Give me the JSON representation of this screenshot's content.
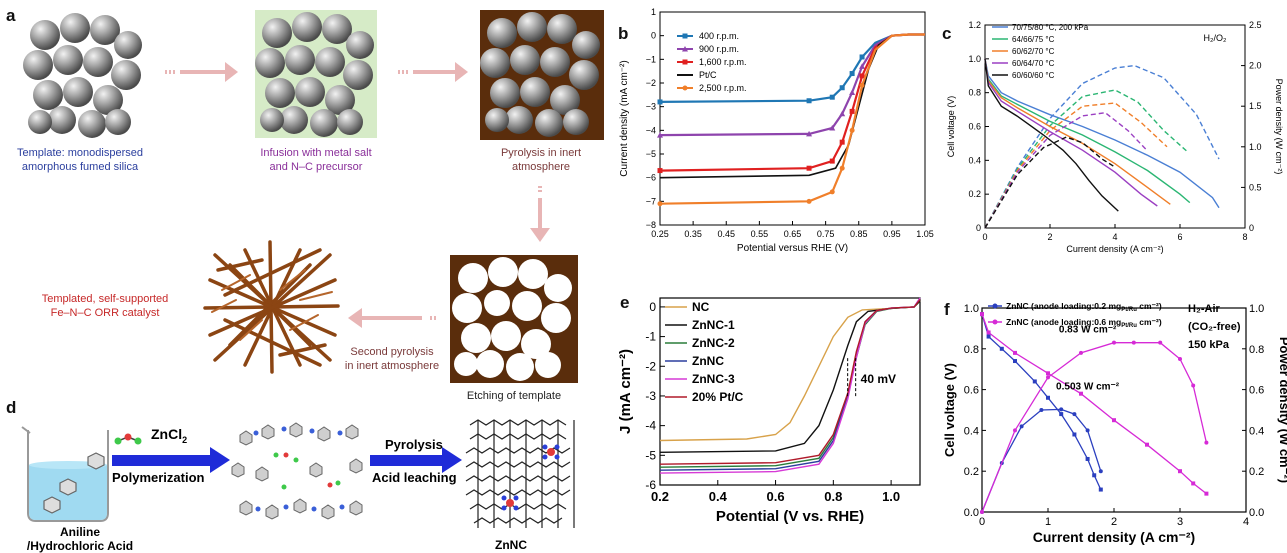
{
  "panel_letters": {
    "a": "a",
    "b": "b",
    "c": "c",
    "d": "d",
    "e": "e",
    "f": "f"
  },
  "panel_a": {
    "cap1_l1": "Template: monodispersed",
    "cap1_l2": "amorphous fumed silica",
    "cap2_l1": "Infusion with metal salt",
    "cap2_l2": "and N–C precursor",
    "cap3_l1": "Pyrolysis in inert",
    "cap3_l2": "atmosphere",
    "cap4": "Etching of template",
    "cap5_l1": "Second pyrolysis",
    "cap5_l2": "in inert atmosphere",
    "cap6_l1": "Templated, self-supported",
    "cap6_l2": "Fe–N–C ORR catalyst",
    "colors": {
      "blue": "#2b3f9e",
      "purple": "#8a2f9a",
      "maroon": "#7a3a3a",
      "red": "#c62828",
      "arrow": "#e8b5b5",
      "brown": "#5a2d0c"
    }
  },
  "panel_d": {
    "reagent": "ZnCl",
    "reagent_sub": "2",
    "step1": "Polymerization",
    "step2": "Pyrolysis",
    "step3": "Acid leaching",
    "start_l1": "Aniline",
    "start_l2": "/Hydrochloric Acid",
    "product": "ZnNC"
  },
  "chart_data": [
    {
      "panel": "b",
      "type": "line",
      "xlabel": "Potential versus RHE (V)",
      "ylabel": "Current density (mA cm⁻²)",
      "xlim": [
        0.25,
        1.05
      ],
      "ylim": [
        -8,
        1
      ],
      "xticks": [
        "0.25",
        "0.35",
        "0.45",
        "0.55",
        "0.65",
        "0.75",
        "0.85",
        "0.95",
        "1.05"
      ],
      "yticks": [
        "1",
        "0",
        "−1",
        "−2",
        "−3",
        "−4",
        "−5",
        "−6",
        "−7",
        "−8"
      ],
      "legend_position": "top-left",
      "series": [
        {
          "name": "400 r.p.m.",
          "color": "#1f77b4",
          "marker": "square",
          "x": [
            0.25,
            0.7,
            0.77,
            0.8,
            0.83,
            0.86,
            0.9,
            0.95,
            1.0,
            1.05
          ],
          "values": [
            -2.8,
            -2.75,
            -2.6,
            -2.2,
            -1.6,
            -0.9,
            -0.3,
            0.0,
            0.05,
            0.05
          ]
        },
        {
          "name": "900 r.p.m.",
          "color": "#8e44ad",
          "marker": "triangle",
          "x": [
            0.25,
            0.7,
            0.77,
            0.8,
            0.83,
            0.86,
            0.9,
            0.95,
            1.0,
            1.05
          ],
          "values": [
            -4.2,
            -4.15,
            -3.9,
            -3.3,
            -2.4,
            -1.3,
            -0.4,
            0.0,
            0.05,
            0.05
          ]
        },
        {
          "name": "1,600 r.p.m.",
          "color": "#e02020",
          "marker": "square",
          "x": [
            0.25,
            0.7,
            0.77,
            0.8,
            0.83,
            0.86,
            0.9,
            0.95,
            1.0,
            1.05
          ],
          "values": [
            -5.7,
            -5.6,
            -5.3,
            -4.5,
            -3.2,
            -1.7,
            -0.5,
            0.0,
            0.05,
            0.05
          ]
        },
        {
          "name": "Pt/C",
          "color": "#111111",
          "marker": "line",
          "x": [
            0.25,
            0.7,
            0.78,
            0.82,
            0.85,
            0.88,
            0.91,
            0.95,
            1.0,
            1.05
          ],
          "values": [
            -6.0,
            -5.9,
            -5.6,
            -4.6,
            -3.0,
            -1.4,
            -0.4,
            0.0,
            0.05,
            0.05
          ]
        },
        {
          "name": "2,500 r.p.m.",
          "color": "#f07f2a",
          "marker": "circle",
          "x": [
            0.25,
            0.7,
            0.77,
            0.8,
            0.83,
            0.86,
            0.9,
            0.95,
            1.0,
            1.05
          ],
          "values": [
            -7.1,
            -7.0,
            -6.6,
            -5.6,
            -4.0,
            -2.1,
            -0.6,
            0.0,
            0.05,
            0.05
          ]
        }
      ]
    },
    {
      "panel": "c",
      "type": "line",
      "annotation": "H₂/O₂",
      "ylabel": "Cell voltage (V)",
      "y2label": "Power density (W cm⁻²)",
      "xlabel": "Current density (A cm⁻²)",
      "xlim": [
        0,
        8
      ],
      "ylim": [
        0,
        1.2
      ],
      "y2lim": [
        0,
        2.5
      ],
      "xticks": [
        "0",
        "2",
        "4",
        "6",
        "8"
      ],
      "yticks": [
        "0",
        "0.2",
        "0.4",
        "0.6",
        "0.8",
        "1.0",
        "1.2"
      ],
      "y2ticks": [
        "0",
        "0.5",
        "1.0",
        "1.5",
        "2.0",
        "2.5"
      ],
      "legend_position": "top-left",
      "series": [
        {
          "name": "70/75/80 °C, 200 kPa",
          "color": "#4a7fd4",
          "x": [
            0,
            0.1,
            0.5,
            1,
            2,
            3,
            4,
            5,
            6,
            7,
            7.2
          ],
          "voltage": [
            1.0,
            0.9,
            0.8,
            0.75,
            0.67,
            0.6,
            0.52,
            0.43,
            0.33,
            0.18,
            0.12
          ],
          "power_x": [
            0,
            1,
            2,
            3,
            4,
            4.6,
            5.5,
            6.5,
            7.2
          ],
          "power": [
            0,
            0.75,
            1.35,
            1.78,
            1.97,
            2.0,
            1.85,
            1.4,
            0.85
          ]
        },
        {
          "name": "64/66/75 °C",
          "color": "#2bb673",
          "x": [
            0,
            0.1,
            0.5,
            1,
            2,
            3,
            4,
            5,
            6,
            6.3
          ],
          "voltage": [
            1.0,
            0.88,
            0.78,
            0.73,
            0.63,
            0.55,
            0.45,
            0.34,
            0.2,
            0.15
          ],
          "power_x": [
            0,
            1,
            2,
            3,
            4,
            4.7,
            5.5,
            6.2
          ],
          "power": [
            0,
            0.73,
            1.26,
            1.62,
            1.7,
            1.55,
            1.2,
            0.95
          ]
        },
        {
          "name": "60/62/70 °C",
          "color": "#f07f2a",
          "x": [
            0,
            0.1,
            0.5,
            1,
            2,
            3,
            4,
            5,
            5.7
          ],
          "voltage": [
            1.0,
            0.87,
            0.77,
            0.71,
            0.6,
            0.5,
            0.38,
            0.24,
            0.14
          ],
          "power_x": [
            0,
            1,
            2,
            3,
            4,
            4.8,
            5.6
          ],
          "power": [
            0,
            0.71,
            1.2,
            1.5,
            1.54,
            1.3,
            1.0
          ]
        },
        {
          "name": "60/64/70 °C",
          "color": "#9b3fc2",
          "x": [
            0,
            0.1,
            0.5,
            1,
            2,
            3,
            4,
            4.8,
            5.3
          ],
          "voltage": [
            1.0,
            0.86,
            0.75,
            0.69,
            0.57,
            0.46,
            0.33,
            0.2,
            0.13
          ],
          "power_x": [
            0,
            1,
            2,
            3,
            3.7,
            4.4,
            5.0
          ],
          "power": [
            0,
            0.69,
            1.14,
            1.38,
            1.42,
            1.2,
            0.95
          ]
        },
        {
          "name": "60/60/60 °C",
          "color": "#111111",
          "x": [
            0,
            0.1,
            0.5,
            1,
            1.8,
            2.4,
            2.8,
            3.2,
            3.6,
            4.1
          ],
          "voltage": [
            1.0,
            0.84,
            0.72,
            0.66,
            0.55,
            0.46,
            0.38,
            0.28,
            0.19,
            0.1
          ],
          "power_x": [
            0,
            1,
            1.8,
            2.5,
            3.0,
            3.6,
            4.0
          ],
          "power": [
            0,
            0.66,
            0.99,
            1.12,
            1.05,
            0.85,
            0.75
          ]
        }
      ]
    },
    {
      "panel": "e",
      "type": "line",
      "xlabel": "Potential (V vs. RHE)",
      "ylabel": "J (mA cm⁻²)",
      "xlim": [
        0.2,
        1.1
      ],
      "ylim": [
        -6,
        0.3
      ],
      "xticks": [
        "0.2",
        "0.4",
        "0.6",
        "0.8",
        "1.0"
      ],
      "yticks": [
        "0",
        "-1",
        "-2",
        "-3",
        "-4",
        "-5",
        "-6"
      ],
      "annotation": "40 mV",
      "legend_position": "top-left",
      "series": [
        {
          "name": "NC",
          "color": "#d8a24a",
          "x": [
            0.2,
            0.5,
            0.6,
            0.65,
            0.7,
            0.75,
            0.8,
            0.85,
            0.9,
            1.0,
            1.08,
            1.1
          ],
          "values": [
            -4.5,
            -4.45,
            -4.3,
            -3.9,
            -3.0,
            -2.0,
            -1.0,
            -0.35,
            -0.1,
            -0.05,
            0.0,
            0.2
          ]
        },
        {
          "name": "ZnNC-1",
          "color": "#111111",
          "x": [
            0.2,
            0.6,
            0.7,
            0.75,
            0.8,
            0.85,
            0.88,
            0.92,
            1.0,
            1.08,
            1.1
          ],
          "values": [
            -4.9,
            -4.85,
            -4.6,
            -4.0,
            -2.8,
            -1.3,
            -0.5,
            -0.15,
            -0.05,
            0.0,
            0.2
          ]
        },
        {
          "name": "ZnNC-2",
          "color": "#2a7d3a",
          "x": [
            0.2,
            0.6,
            0.75,
            0.8,
            0.85,
            0.88,
            0.91,
            0.95,
            1.0,
            1.08,
            1.1
          ],
          "values": [
            -5.4,
            -5.35,
            -5.1,
            -4.4,
            -3.0,
            -1.7,
            -0.6,
            -0.15,
            -0.05,
            0.0,
            0.25
          ]
        },
        {
          "name": "ZnNC",
          "color": "#2b3f9e",
          "x": [
            0.2,
            0.6,
            0.75,
            0.8,
            0.85,
            0.88,
            0.91,
            0.95,
            1.0,
            1.08,
            1.1
          ],
          "values": [
            -5.5,
            -5.45,
            -5.2,
            -4.5,
            -3.0,
            -1.6,
            -0.5,
            -0.12,
            -0.04,
            0.0,
            0.3
          ]
        },
        {
          "name": "ZnNC-3",
          "color": "#d63ad6",
          "x": [
            0.2,
            0.6,
            0.75,
            0.8,
            0.85,
            0.88,
            0.91,
            0.95,
            1.0,
            1.08,
            1.1
          ],
          "values": [
            -5.6,
            -5.55,
            -5.3,
            -4.6,
            -3.1,
            -1.7,
            -0.55,
            -0.13,
            -0.04,
            0.0,
            0.3
          ]
        },
        {
          "name": "20% Pt/C",
          "color": "#b01a2a",
          "x": [
            0.2,
            0.6,
            0.75,
            0.8,
            0.85,
            0.88,
            0.91,
            0.95,
            1.0,
            1.08,
            1.1
          ],
          "values": [
            -5.3,
            -5.25,
            -5.0,
            -4.3,
            -2.9,
            -1.5,
            -0.5,
            -0.12,
            -0.04,
            0.0,
            0.25
          ]
        }
      ]
    },
    {
      "panel": "f",
      "type": "line",
      "xlabel": "Current density (A cm⁻²)",
      "ylabel": "Cell voltage (V)",
      "y2label": "Power density (W cm⁻²)",
      "xlim": [
        0,
        4
      ],
      "ylim": [
        0,
        1.0
      ],
      "y2lim": [
        0,
        1.0
      ],
      "xticks": [
        "0",
        "1",
        "2",
        "3",
        "4"
      ],
      "yticks": [
        "0.0",
        "0.2",
        "0.4",
        "0.6",
        "0.8",
        "1.0"
      ],
      "y2ticks": [
        "0.0",
        "0.2",
        "0.4",
        "0.6",
        "0.8",
        "1.0"
      ],
      "annotations": [
        "H₂-Air",
        "(CO₂-free)",
        "150 kPa",
        "0.83 W cm⁻²",
        "0.503 W cm⁻²"
      ],
      "legend_position": "top-left",
      "series": [
        {
          "name": "ZnNC (anode loading:0.2 mg",
          "name_sub": "Pt/Ru",
          "name_suffix": " cm⁻²)",
          "color": "#2b3fbf",
          "x": [
            0,
            0.1,
            0.3,
            0.5,
            0.8,
            1.0,
            1.2,
            1.4,
            1.6,
            1.7,
            1.8
          ],
          "voltage": [
            0.97,
            0.86,
            0.8,
            0.74,
            0.64,
            0.56,
            0.48,
            0.38,
            0.26,
            0.18,
            0.11
          ],
          "power_x": [
            0,
            0.3,
            0.6,
            0.9,
            1.2,
            1.4,
            1.6,
            1.8
          ],
          "power": [
            0,
            0.24,
            0.42,
            0.5,
            0.503,
            0.48,
            0.4,
            0.2
          ]
        },
        {
          "name": "ZnNC (anode loading:0.6 mg",
          "name_sub": "Pt/Ru",
          "name_suffix": " cm⁻²)",
          "color": "#d62ad6",
          "x": [
            0,
            0.1,
            0.5,
            1.0,
            1.5,
            2.0,
            2.5,
            3.0,
            3.2,
            3.4
          ],
          "voltage": [
            0.97,
            0.88,
            0.78,
            0.68,
            0.58,
            0.45,
            0.33,
            0.2,
            0.14,
            0.09
          ],
          "power_x": [
            0,
            0.5,
            1.0,
            1.5,
            2.0,
            2.3,
            2.7,
            3.0,
            3.2,
            3.4
          ],
          "power": [
            0,
            0.4,
            0.66,
            0.78,
            0.83,
            0.83,
            0.83,
            0.75,
            0.62,
            0.34
          ]
        }
      ]
    }
  ]
}
